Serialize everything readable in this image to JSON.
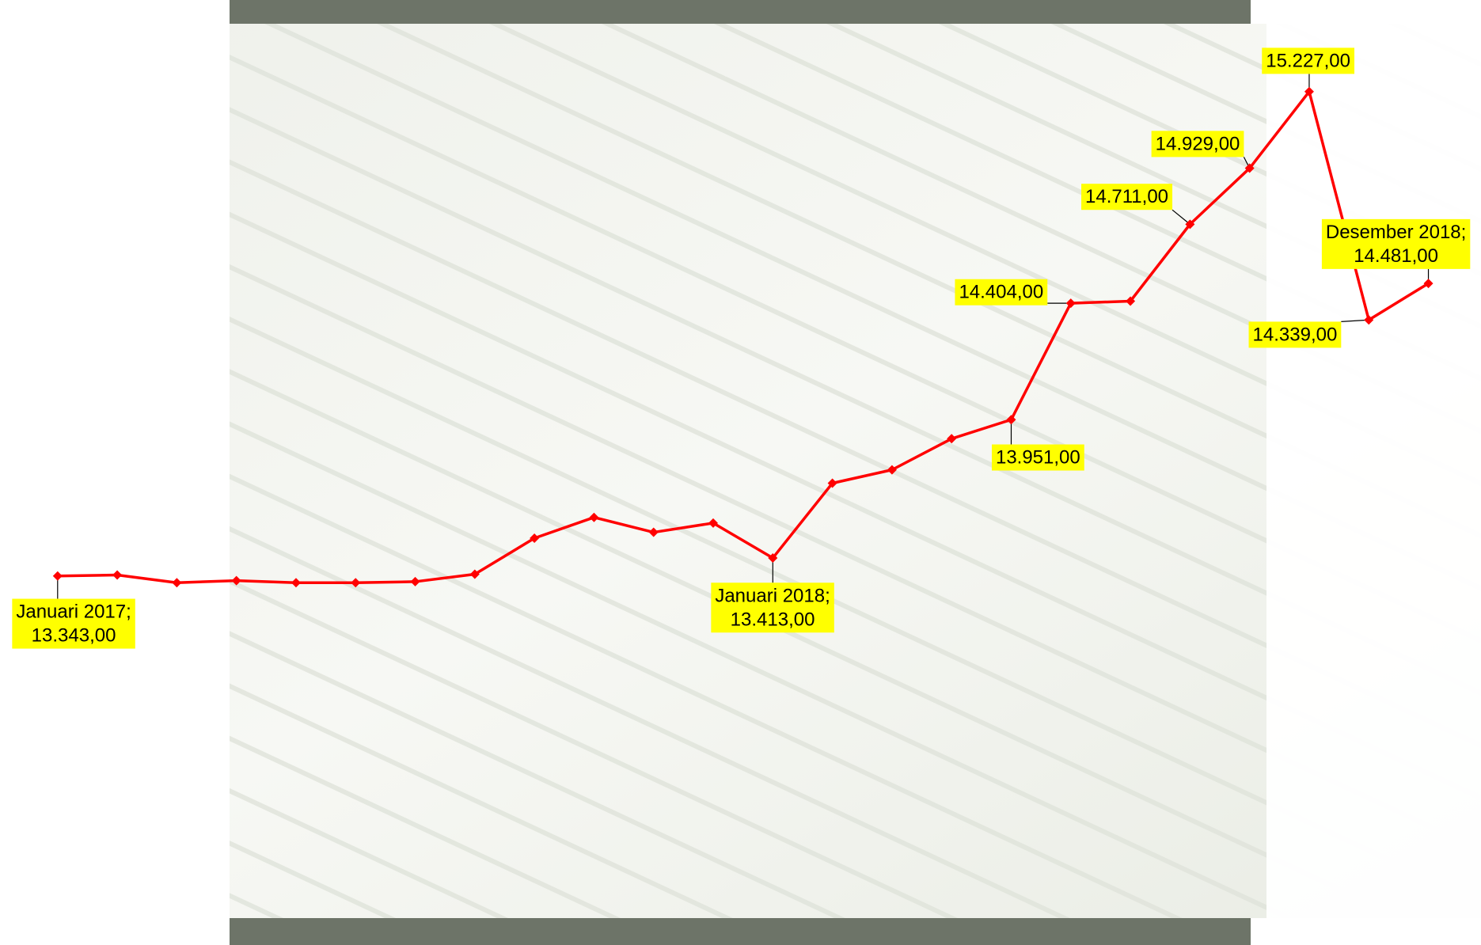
{
  "chart_data": {
    "type": "line",
    "color": "#ff0000",
    "categories": [
      null,
      null,
      null,
      null,
      null,
      null,
      null,
      null,
      null,
      null,
      null,
      null,
      null,
      null,
      null,
      null,
      null,
      null,
      null,
      null,
      null,
      null,
      null,
      null
    ],
    "values": [
      13343,
      13347,
      13317,
      13325,
      13317,
      13317,
      13321,
      13350,
      13490,
      13571,
      13513,
      13549,
      13413,
      13704,
      13756,
      13877,
      13951,
      14404,
      14412,
      14711,
      14929,
      15227,
      14339,
      14481
    ],
    "value_labels": [
      "Januari 2017;\n13.343,00",
      null,
      null,
      null,
      null,
      null,
      null,
      null,
      null,
      null,
      null,
      null,
      "Januari 2018;\n13.413,00",
      null,
      null,
      null,
      "13.951,00",
      "14.404,00",
      null,
      "14.711,00",
      "14.929,00",
      "15.227,00",
      "14.339,00",
      "Desember 2018;\n14.481,00"
    ]
  }
}
